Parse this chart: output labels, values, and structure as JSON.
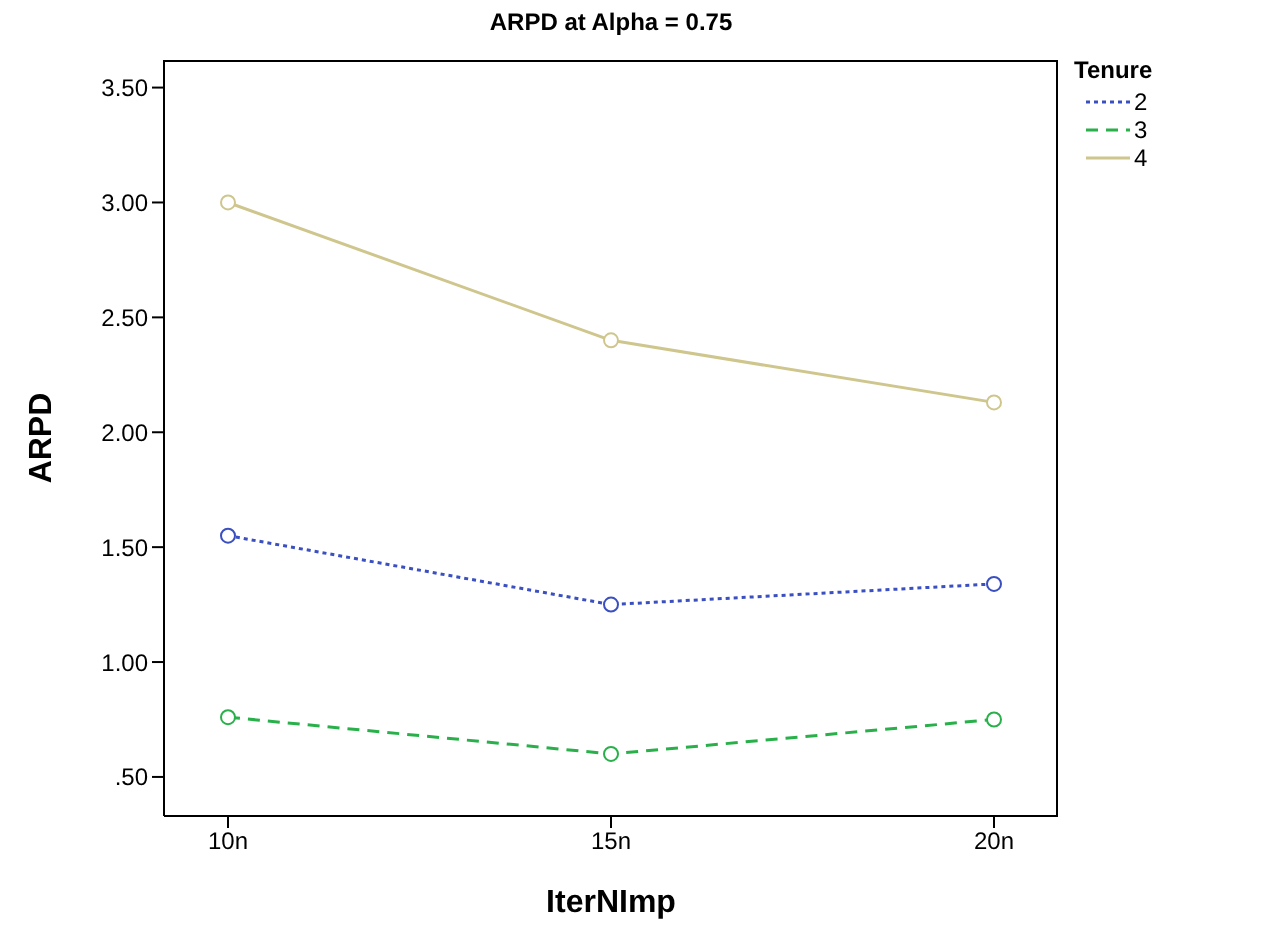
{
  "chart_data": {
    "type": "line",
    "title": "ARPD at Alpha = 0.75",
    "xlabel": "IterNImp",
    "ylabel": "ARPD",
    "legend_title": "Tenure",
    "categories": [
      "10n",
      "15n",
      "20n"
    ],
    "series": [
      {
        "name": "2",
        "color": "#3a4fc0",
        "line_style": "dotted",
        "values": [
          1.55,
          1.25,
          1.34
        ]
      },
      {
        "name": "3",
        "color": "#2ab04a",
        "line_style": "dashed",
        "values": [
          0.76,
          0.6,
          0.75
        ]
      },
      {
        "name": "4",
        "color": "#cfc68e",
        "line_style": "solid",
        "values": [
          3.0,
          2.4,
          2.13
        ]
      }
    ],
    "ylim": [
      0.33,
      3.62
    ],
    "yticks": [
      {
        "value": 0.5,
        "label": ".50"
      },
      {
        "value": 1,
        "label": "1.00"
      },
      {
        "value": 1.5,
        "label": "1.50"
      },
      {
        "value": 2,
        "label": "2.00"
      },
      {
        "value": 2.5,
        "label": "2.50"
      },
      {
        "value": 3,
        "label": "3.00"
      },
      {
        "value": 3.5,
        "label": "3.50"
      }
    ],
    "marker": "circle",
    "grid": false,
    "legend": "top right"
  }
}
